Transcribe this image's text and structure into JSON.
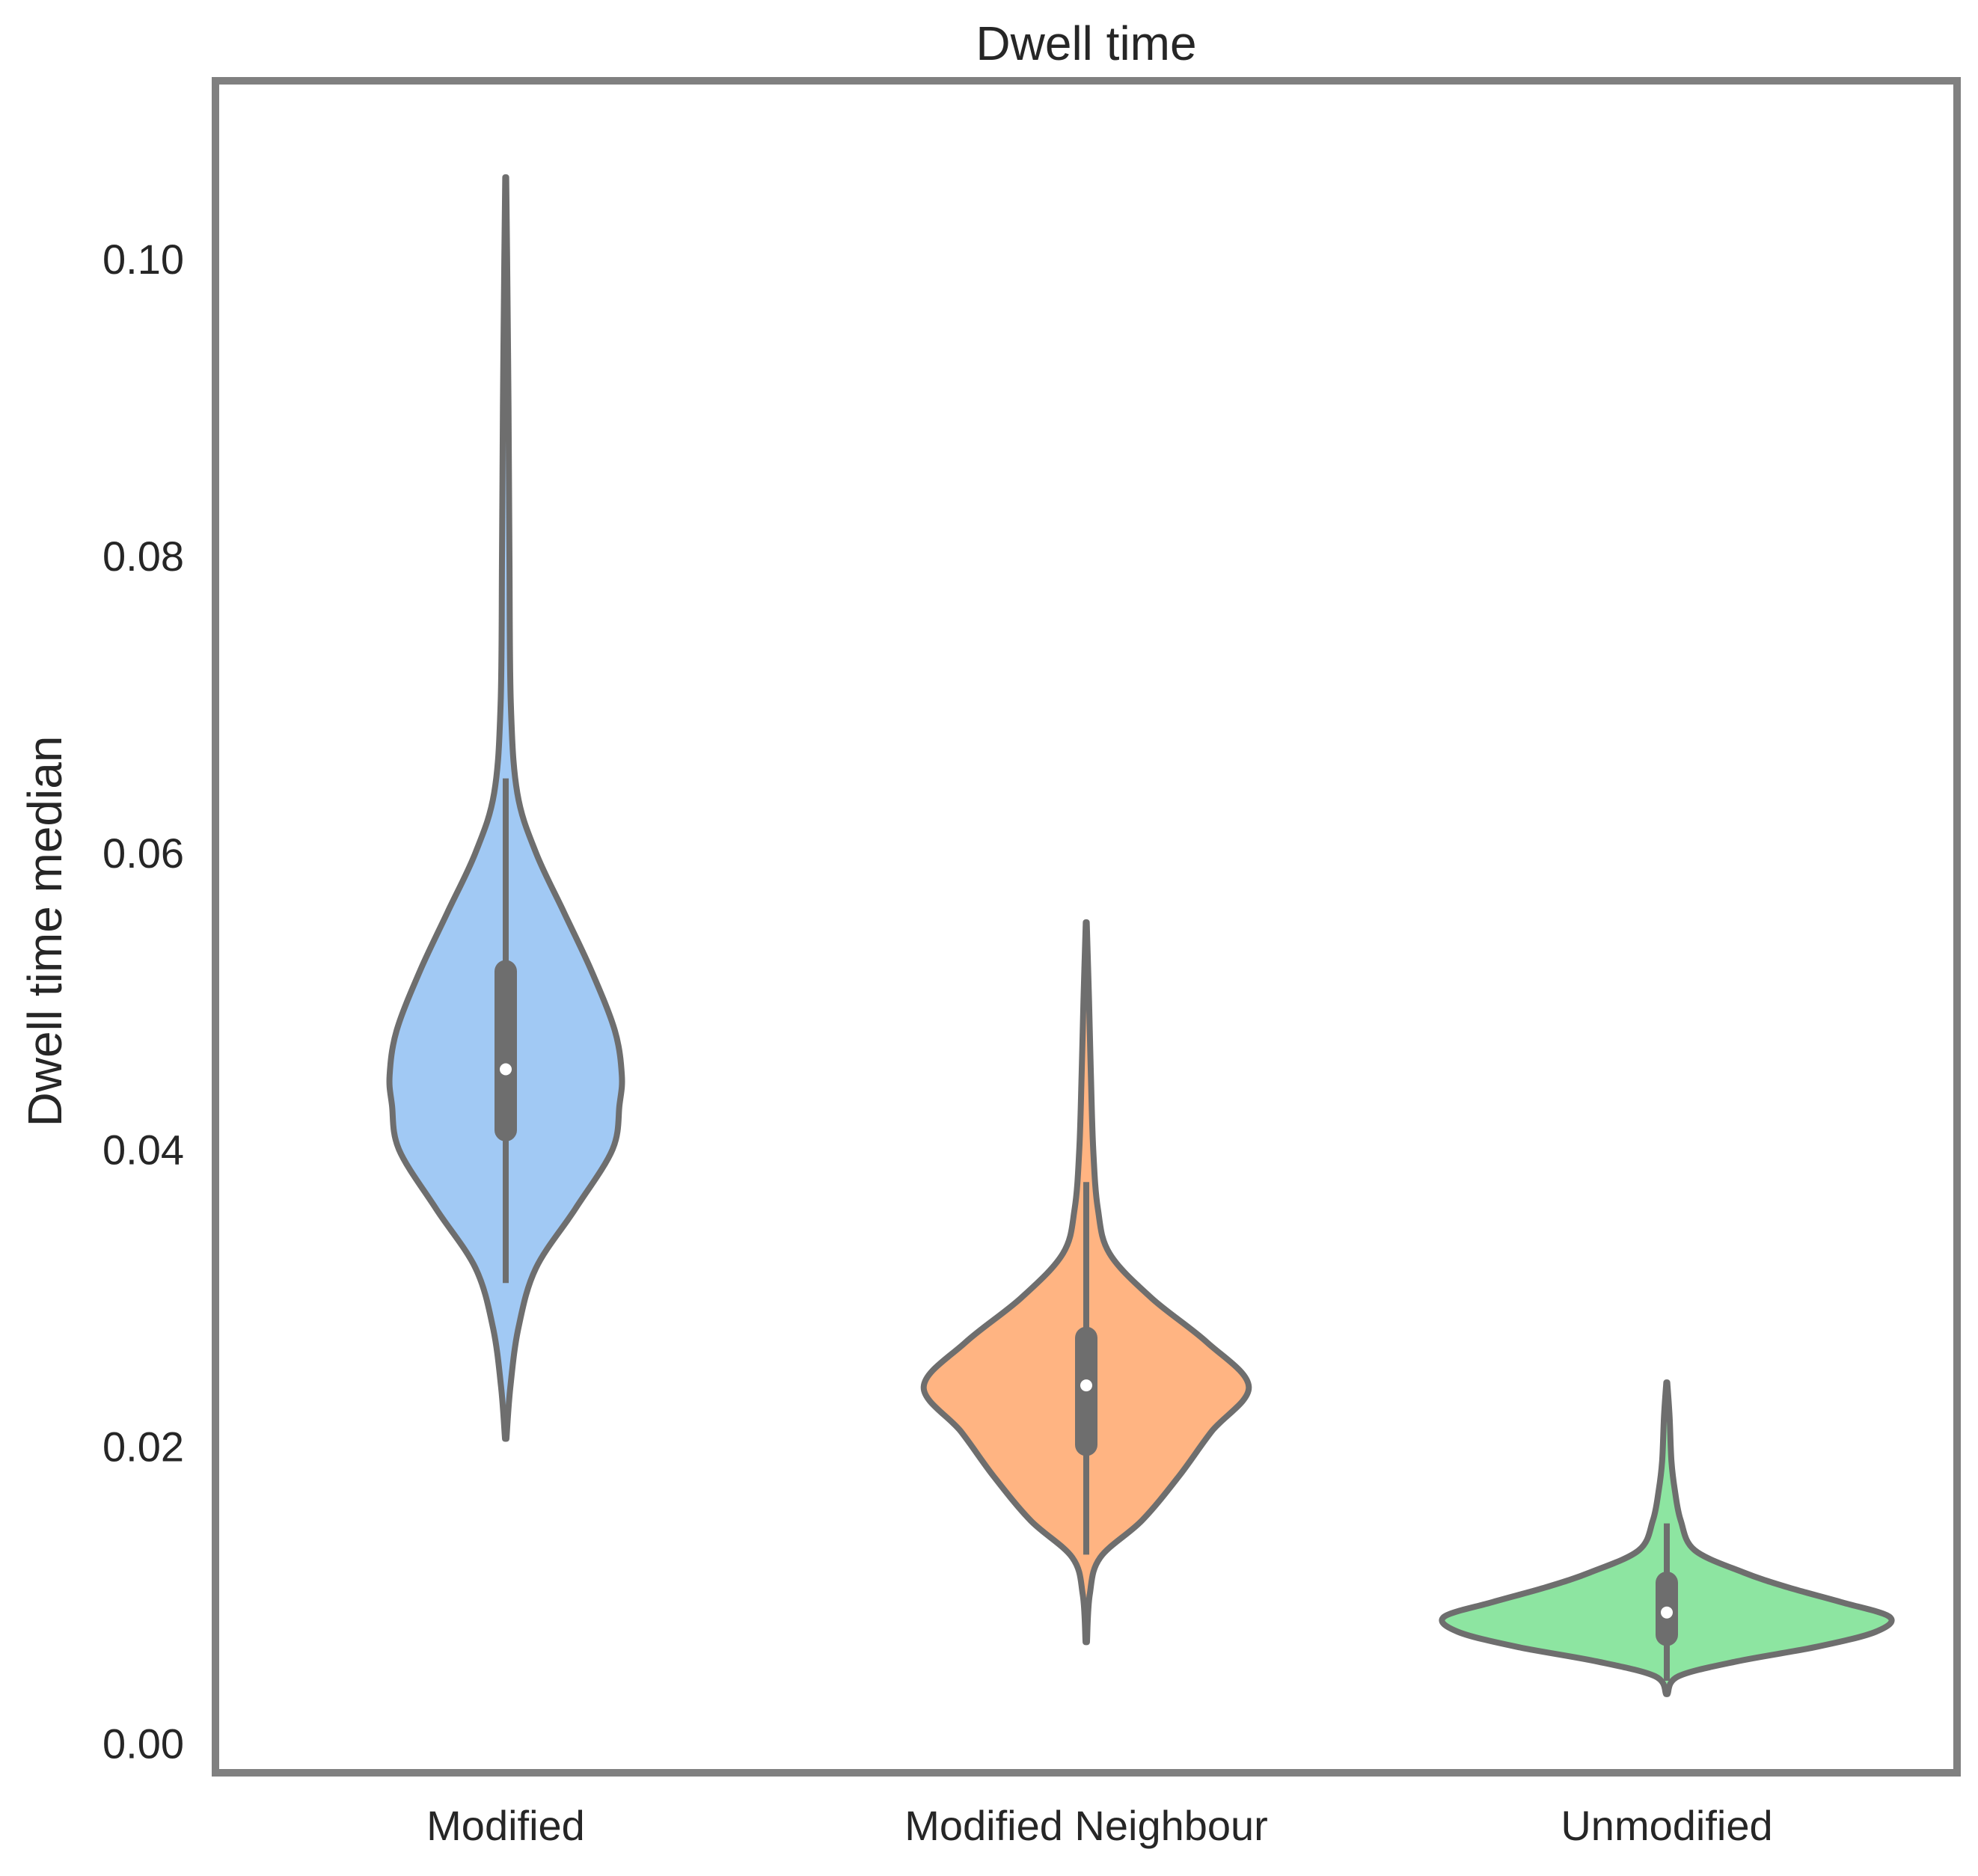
{
  "chart_data": {
    "type": "violin",
    "title": "Dwell time",
    "xlabel": "",
    "ylabel": "Dwell time median",
    "ylim": [
      -0.002,
      0.112
    ],
    "yticks": [
      "0.00",
      "0.02",
      "0.04",
      "0.06",
      "0.08",
      "0.10"
    ],
    "ytick_values": [
      0,
      0.02,
      0.04,
      0.06,
      0.08,
      0.1
    ],
    "grid": false,
    "categories": [
      "Modified",
      "Modified Neighbour",
      "Unmodified"
    ],
    "series": [
      {
        "category": "Modified",
        "color": "#a1c9f4",
        "min": 0.0205,
        "max": 0.1055,
        "median": 0.0454,
        "q1": 0.0413,
        "q3": 0.052,
        "whisker_low": 0.031,
        "whisker_high": 0.065,
        "density": [
          [
            0.0205,
            0.003
          ],
          [
            0.024,
            0.02
          ],
          [
            0.028,
            0.055
          ],
          [
            0.032,
            0.13
          ],
          [
            0.036,
            0.3
          ],
          [
            0.04,
            0.46
          ],
          [
            0.043,
            0.49
          ],
          [
            0.045,
            0.5
          ],
          [
            0.048,
            0.47
          ],
          [
            0.052,
            0.37
          ],
          [
            0.056,
            0.25
          ],
          [
            0.06,
            0.13
          ],
          [
            0.064,
            0.05
          ],
          [
            0.07,
            0.022
          ],
          [
            0.08,
            0.016
          ],
          [
            0.09,
            0.012
          ],
          [
            0.1,
            0.006
          ],
          [
            0.1055,
            0.002
          ]
        ]
      },
      {
        "category": "Modified Neighbour",
        "color": "#ffb482",
        "min": 0.0068,
        "max": 0.0553,
        "median": 0.0241,
        "q1": 0.0201,
        "q3": 0.0273,
        "whisker_low": 0.0127,
        "whisker_high": 0.0378,
        "density": [
          [
            0.0068,
            0.003
          ],
          [
            0.01,
            0.015
          ],
          [
            0.0125,
            0.06
          ],
          [
            0.015,
            0.24
          ],
          [
            0.018,
            0.4
          ],
          [
            0.021,
            0.54
          ],
          [
            0.024,
            0.7
          ],
          [
            0.027,
            0.52
          ],
          [
            0.03,
            0.28
          ],
          [
            0.033,
            0.1
          ],
          [
            0.036,
            0.05
          ],
          [
            0.04,
            0.03
          ],
          [
            0.045,
            0.02
          ],
          [
            0.05,
            0.012
          ],
          [
            0.0553,
            0.002
          ]
        ]
      },
      {
        "category": "Unmodified",
        "color": "#8de5a1",
        "min": 0.0033,
        "max": 0.0243,
        "median": 0.0088,
        "q1": 0.0073,
        "q3": 0.0108,
        "whisker_low": 0.0042,
        "whisker_high": 0.0148,
        "density": [
          [
            0.0033,
            0.003
          ],
          [
            0.0045,
            0.05
          ],
          [
            0.0055,
            0.3
          ],
          [
            0.0065,
            0.65
          ],
          [
            0.0075,
            0.9
          ],
          [
            0.0085,
            0.96
          ],
          [
            0.0095,
            0.75
          ],
          [
            0.0105,
            0.52
          ],
          [
            0.0115,
            0.33
          ],
          [
            0.013,
            0.12
          ],
          [
            0.015,
            0.06
          ],
          [
            0.017,
            0.035
          ],
          [
            0.019,
            0.02
          ],
          [
            0.022,
            0.012
          ],
          [
            0.0243,
            0.002
          ]
        ]
      }
    ]
  }
}
